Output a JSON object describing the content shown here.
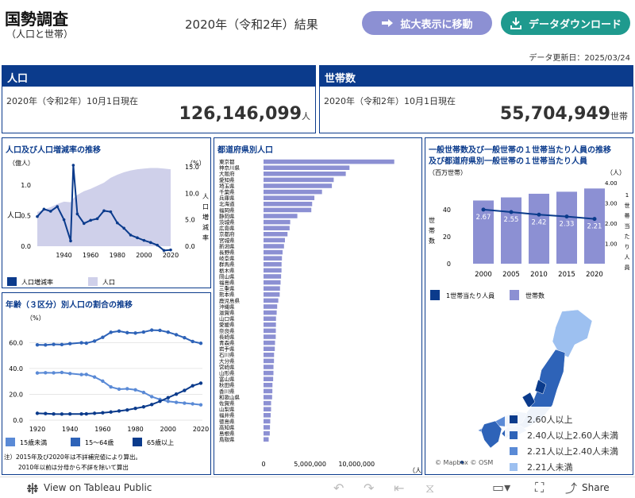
{
  "header": {
    "title": "国勢調査",
    "subtitle": "（人口と世帯）",
    "census_label": "2020年（令和2年）結果",
    "btn_expand": "拡大表示に移動",
    "btn_download": "データダウンロード",
    "updated": "データ更新日：2025/03/24"
  },
  "population_card": {
    "title": "人口",
    "date": "2020年（令和2年）10月1日現在",
    "value": "126,146,099",
    "unit": "人"
  },
  "households_card": {
    "title": "世帯数",
    "date": "2020年（令和2年）10月1日現在",
    "value": "55,704,949",
    "unit": "世帯"
  },
  "chart_pop": {
    "title": "人口及び人口増減率の推移",
    "left_unit": "（億人）",
    "right_unit": "（%）",
    "left_axis": "人口",
    "right_axis": [
      "人",
      "口",
      "増",
      "減",
      "率"
    ],
    "yticks": [
      "1.0",
      "0.5",
      "0.0"
    ],
    "rticks": [
      "15.0",
      "10.0",
      "5.0",
      "0.0"
    ],
    "xticks": [
      "1940",
      "1960",
      "1980",
      "2000",
      "2020"
    ],
    "legend": [
      "人口増減率",
      "人口"
    ]
  },
  "chart_age": {
    "title": "年齢（３区分）別人口の割合の推移",
    "unit": "（%）",
    "yticks": [
      "60.0",
      "40.0",
      "20.0",
      "0.0"
    ],
    "xticks": [
      "1920",
      "1940",
      "1960",
      "1980",
      "2000",
      "2020"
    ],
    "legend": [
      "15歳未満",
      "15～64歳",
      "65歳以上"
    ],
    "note1": "注）2015年及び2020年は不詳補完値により算出。",
    "note2": "2010年以前は分母から不詳を除いて算出"
  },
  "chart_pref": {
    "title": "都道府県別人口",
    "xticks": [
      "0",
      "5,000,000",
      "10,000,000"
    ],
    "unit": "（人）"
  },
  "chart_hh": {
    "title1": "一般世帯数及び一般世帯の１世帯当たり人員の推移",
    "title2": "及び都道府県別一般世帯の１世帯当たり人員",
    "left_unit": "（百万世帯）",
    "right_unit": "（人）",
    "left_axis": [
      "世",
      "帯",
      "数"
    ],
    "right_axis": [
      "1",
      "世",
      "帯",
      "当",
      "た",
      "り",
      "人",
      "員"
    ],
    "yticks": [
      "40",
      "20",
      "0"
    ],
    "rticks": [
      "4.00",
      "3.00",
      "2.00",
      "1.00"
    ],
    "legend": [
      "1世帯当たり人員",
      "世帯数"
    ]
  },
  "map": {
    "legend": [
      "2.60人以上",
      "2.40人以上2.60人未満",
      "2.21人以上2.40人未満",
      "2.21人未満"
    ],
    "legend_colors": [
      "#0b3b8c",
      "#2e63b8",
      "#5a8ad6",
      "#9dc0f0"
    ],
    "attrib": "© Mapbox  © OSM"
  },
  "footer": {
    "label": "View on Tableau Public",
    "share": "Share"
  },
  "chart_data": [
    {
      "type": "line",
      "title": "人口及び人口増減率の推移",
      "x": [
        1920,
        1925,
        1930,
        1935,
        1940,
        1945,
        1947,
        1950,
        1955,
        1960,
        1965,
        1970,
        1975,
        1980,
        1985,
        1990,
        1995,
        2000,
        2005,
        2010,
        2015,
        2020
      ],
      "series": [
        {
          "name": "人口",
          "values": [
            0.56,
            0.6,
            0.64,
            0.69,
            0.73,
            0.72,
            0.78,
            0.84,
            0.9,
            0.94,
            0.99,
            1.04,
            1.12,
            1.17,
            1.21,
            1.24,
            1.26,
            1.27,
            1.28,
            1.28,
            1.27,
            1.26
          ]
        },
        {
          "name": "人口増減率",
          "values": [
            5.6,
            7.0,
            6.6,
            7.5,
            5.0,
            1.0,
            15.3,
            6.1,
            4.3,
            4.9,
            5.2,
            6.7,
            6.5,
            4.4,
            3.4,
            2.1,
            1.6,
            1.1,
            0.7,
            0.2,
            -0.8,
            -0.7
          ]
        }
      ],
      "ylim": [
        0,
        1.3
      ],
      "y2lim": [
        0,
        15
      ]
    },
    {
      "type": "line",
      "title": "年齢（３区分）別人口の割合の推移",
      "x": [
        1920,
        1925,
        1930,
        1935,
        1940,
        1947,
        1950,
        1955,
        1960,
        1965,
        1970,
        1975,
        1980,
        1985,
        1990,
        1995,
        2000,
        2005,
        2010,
        2015,
        2020
      ],
      "series": [
        {
          "name": "15歳未満",
          "values": [
            36.5,
            36.7,
            36.6,
            36.9,
            36.1,
            35.3,
            35.4,
            33.4,
            30.2,
            25.7,
            24.0,
            24.3,
            23.5,
            21.5,
            18.2,
            16.0,
            14.6,
            13.8,
            13.2,
            12.6,
            11.9
          ]
        },
        {
          "name": "15～64歳",
          "values": [
            58.3,
            58.2,
            58.7,
            58.5,
            59.2,
            59.9,
            59.6,
            61.2,
            64.1,
            68.0,
            68.9,
            67.7,
            67.4,
            68.2,
            69.7,
            69.5,
            68.1,
            66.1,
            63.8,
            60.9,
            59.5
          ]
        },
        {
          "name": "65歳以上",
          "values": [
            5.3,
            5.1,
            4.8,
            4.7,
            4.8,
            4.8,
            4.9,
            5.3,
            5.7,
            6.3,
            7.1,
            7.9,
            9.1,
            10.3,
            12.1,
            14.6,
            17.4,
            20.2,
            23.0,
            26.6,
            28.6
          ]
        }
      ],
      "ylim": [
        0,
        75
      ]
    },
    {
      "type": "bar",
      "title": "都道府県別人口",
      "categories": [
        "東京都",
        "神奈川県",
        "大阪府",
        "愛知県",
        "埼玉県",
        "千葉県",
        "兵庫県",
        "北海道",
        "福岡県",
        "静岡県",
        "茨城県",
        "広島県",
        "京都府",
        "宮城県",
        "新潟県",
        "長野県",
        "岐阜県",
        "群馬県",
        "栃木県",
        "岡山県",
        "福島県",
        "三重県",
        "熊本県",
        "鹿児島県",
        "沖縄県",
        "滋賀県",
        "山口県",
        "愛媛県",
        "奈良県",
        "長崎県",
        "青森県",
        "岩手県",
        "石川県",
        "大分県",
        "宮崎県",
        "山形県",
        "富山県",
        "秋田県",
        "香川県",
        "和歌山県",
        "佐賀県",
        "山梨県",
        "福井県",
        "徳島県",
        "高知県",
        "島根県",
        "鳥取県"
      ],
      "values": [
        14047594,
        9237337,
        8837685,
        7542415,
        7344765,
        6284480,
        5465002,
        5224614,
        5135214,
        3633202,
        2867009,
        2799702,
        2578087,
        2301996,
        2201272,
        2048011,
        1978742,
        1939110,
        1933146,
        1888432,
        1833152,
        1770254,
        1738301,
        1588256,
        1467480,
        1413610,
        1342059,
        1334841,
        1324473,
        1312317,
        1237984,
        1210534,
        1132526,
        1123852,
        1069576,
        1068027,
        1034814,
        959502,
        950244,
        922584,
        811442,
        809974,
        766863,
        719559,
        691527,
        671126,
        553407
      ],
      "xlim": [
        0,
        14500000
      ]
    },
    {
      "type": "bar",
      "title": "一般世帯数及び一般世帯の１世帯当たり人員の推移",
      "categories": [
        "2000",
        "2005",
        "2010",
        "2015",
        "2020"
      ],
      "series": [
        {
          "name": "世帯数",
          "values": [
            46.8,
            49.1,
            51.8,
            53.3,
            55.7
          ]
        },
        {
          "name": "1世帯当たり人員",
          "values": [
            2.67,
            2.55,
            2.42,
            2.33,
            2.21
          ]
        }
      ],
      "ylim": [
        0,
        60
      ],
      "y2lim": [
        0,
        4
      ]
    }
  ]
}
